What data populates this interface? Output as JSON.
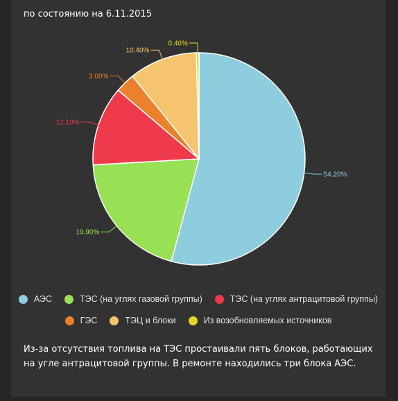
{
  "subtitle": "по состоянию на 6.11.2015",
  "chart_data": {
    "type": "pie",
    "slices": [
      {
        "name": "АЭС",
        "value": 54.2,
        "label": "54.20%",
        "color": "#8ecddd"
      },
      {
        "name": "ТЭС (на углях газовой группы)",
        "value": 19.9,
        "label": "19.90%",
        "color": "#98e155"
      },
      {
        "name": "ТЭС (на углях антрацитовой группы)",
        "value": 12.1,
        "label": "12.10%",
        "color": "#ef3a4c"
      },
      {
        "name": "ГЭС",
        "value": 3.0,
        "label": "3.00%",
        "color": "#ec812d"
      },
      {
        "name": "ТЭЦ и блоки",
        "value": 10.4,
        "label": "10.40%",
        "color": "#f4c46f"
      },
      {
        "name": "Из возобновляемых источников",
        "value": 0.4,
        "label": "0.40%",
        "color": "#e6d62b"
      }
    ],
    "legend_position": "bottom"
  },
  "note": "Из-за отсутствия топлива на ТЭС простаивали пять  блоков, работающих на угле антрацитовой группы. В ремонте находились три блока АЭС."
}
